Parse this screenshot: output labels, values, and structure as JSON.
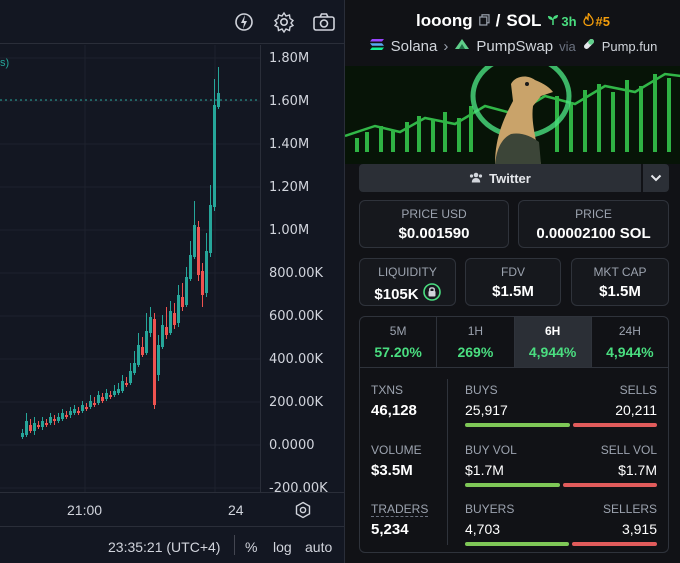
{
  "chart": {
    "price_scale": [
      "1.80M",
      "1.60M",
      "1.40M",
      "1.20M",
      "1.00M",
      "800.00K",
      "600.00K",
      "400.00K",
      "200.00K",
      "0.0000",
      "-200.00K"
    ],
    "time_axis": [
      "21:00",
      "24"
    ],
    "footer": {
      "clock": "23:35:21 (UTC+4)",
      "percent": "%",
      "log": "log",
      "auto": "auto"
    },
    "legend_fragment": "s)"
  },
  "pair": {
    "base": "looong",
    "separator": "/",
    "quote": "SOL",
    "age": "3h",
    "rank": "#5"
  },
  "chain": {
    "name": "Solana",
    "dex": "PumpSwap",
    "via": "via",
    "launchpad": "Pump.fun"
  },
  "social": {
    "twitter_label": "Twitter"
  },
  "prices": {
    "usd_label": "PRICE USD",
    "usd_value": "$0.001590",
    "sol_label": "PRICE",
    "sol_value": "0.00002100 SOL"
  },
  "metrics": {
    "liquidity_label": "LIQUIDITY",
    "liquidity_value": "$105K",
    "fdv_label": "FDV",
    "fdv_value": "$1.5M",
    "mcap_label": "MKT CAP",
    "mcap_value": "$1.5M"
  },
  "timeframes": [
    {
      "label": "5M",
      "change": "57.20%"
    },
    {
      "label": "1H",
      "change": "269%"
    },
    {
      "label": "6H",
      "change": "4,944%"
    },
    {
      "label": "24H",
      "change": "4,944%"
    }
  ],
  "stats": {
    "txns_label": "TXNS",
    "txns_value": "46,128",
    "buys_label": "BUYS",
    "buys_value": "25,917",
    "sells_label": "SELLS",
    "sells_value": "20,211",
    "volume_label": "VOLUME",
    "volume_value": "$3.5M",
    "buy_vol_label": "BUY VOL",
    "buy_vol_value": "$1.7M",
    "sell_vol_label": "SELL VOL",
    "sell_vol_value": "$1.7M",
    "traders_label": "TRADERS",
    "traders_value": "5,234",
    "buyers_label": "BUYERS",
    "buyers_value": "4,703",
    "sellers_label": "SELLERS",
    "sellers_value": "3,915"
  },
  "colors": {
    "up": "#26a69a",
    "down": "#ef5350",
    "accent_green": "#4ade80",
    "buy_bar": "#7fc857",
    "sell_bar": "#e15b5b"
  },
  "icons": [
    "alert-icon",
    "gear-icon",
    "camera-icon",
    "copy-icon",
    "sprout-icon",
    "flame-icon",
    "solana-icon",
    "pumpswap-icon",
    "pill-icon",
    "users-icon",
    "chevron-down-icon",
    "lock-icon",
    "settings-icon"
  ]
}
